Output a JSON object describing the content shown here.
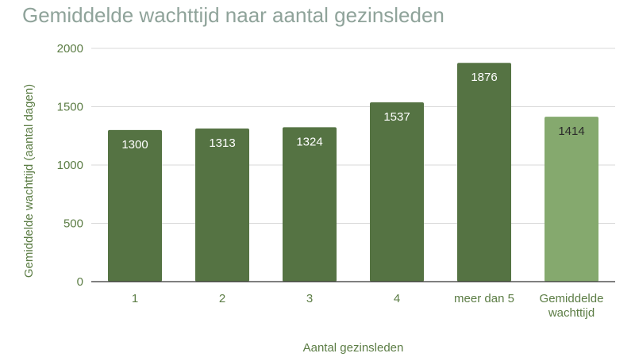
{
  "chart_data": {
    "type": "bar",
    "title": "Gemiddelde wachttijd naar aantal gezinsleden",
    "xlabel": "Aantal gezinsleden",
    "ylabel": "Gemiddelde wachttijd (aantal dagen)",
    "categories": [
      "1",
      "2",
      "3",
      "4",
      "meer dan 5",
      "Gemiddelde wachttijd"
    ],
    "values": [
      1300,
      1313,
      1324,
      1537,
      1876,
      1414
    ],
    "data_labels": [
      "1300",
      "1313",
      "1324",
      "1537",
      "1876",
      "1414"
    ],
    "yticks": [
      "0",
      "500",
      "1000",
      "1500",
      "2000"
    ],
    "ylim": [
      0,
      2000
    ],
    "grid": true,
    "legend": "none",
    "colors": {
      "bar": "#557343",
      "bar_highlight": "#85a96e",
      "bar_label": "#ffffff",
      "bar_label_highlight": "#2b2b2b",
      "axis_text": "#5c7d45",
      "title": "#8fa39a",
      "grid": "#d9d9d9",
      "axis_line": "#333333"
    }
  }
}
